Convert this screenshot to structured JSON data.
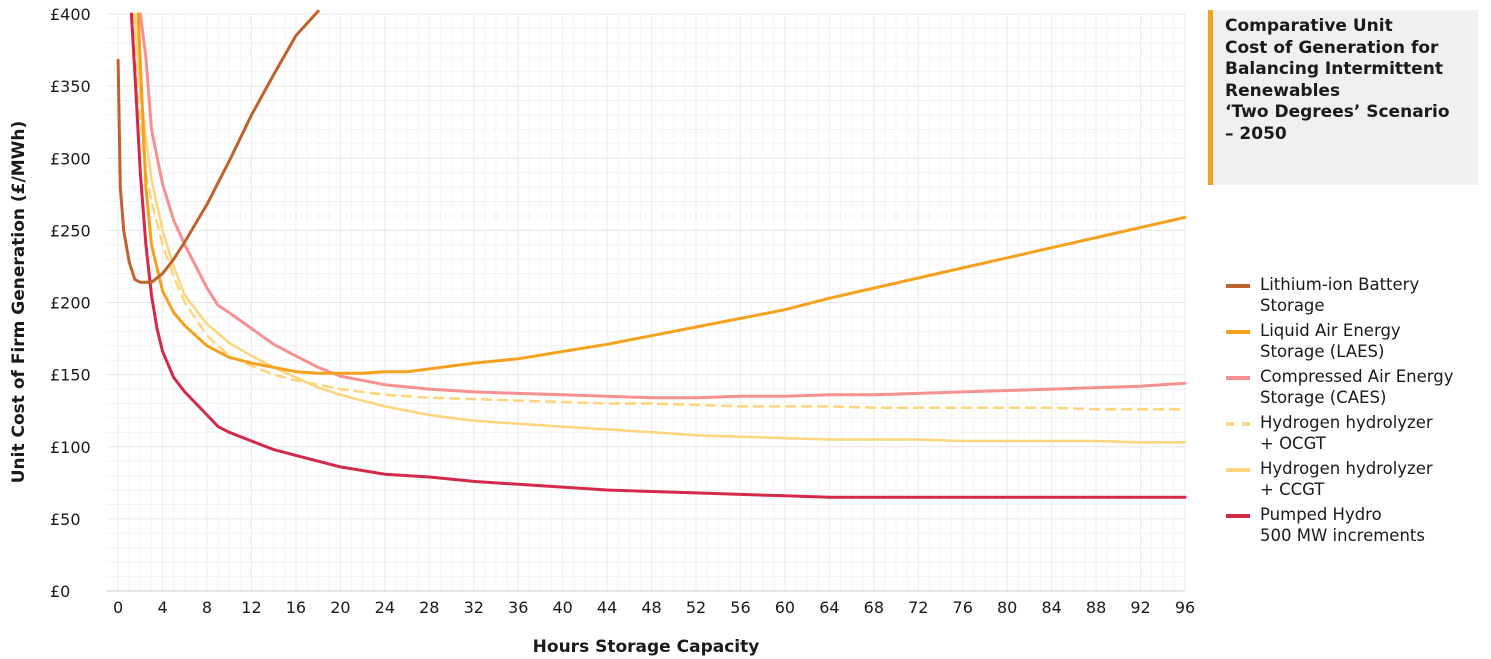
{
  "chart_data": {
    "type": "line",
    "title": "Comparative Unit\nCost of Generation for\nBalancing Intermittent\nRenewables\n‘Two Degrees’ Scenario\n– 2050",
    "xlabel": "Hours Storage Capacity",
    "ylabel": "Unit Cost of Firm Generation (£/MWh)",
    "xlim": [
      -1,
      96
    ],
    "ylim": [
      0,
      400
    ],
    "xticks": [
      "0",
      "4",
      "8",
      "12",
      "16",
      "20",
      "24",
      "28",
      "32",
      "36",
      "40",
      "44",
      "48",
      "52",
      "56",
      "60",
      "64",
      "68",
      "72",
      "76",
      "80",
      "84",
      "88",
      "92",
      "96"
    ],
    "yticks": [
      "£0",
      "£50",
      "£100",
      "£150",
      "£200",
      "£250",
      "£300",
      "£350",
      "£400"
    ],
    "grid": true,
    "legend_position": "right",
    "series": [
      {
        "name": "Lithium-ion Battery\nStorage",
        "color": "#c0622b",
        "dash": false,
        "x": [
          0,
          0.2,
          0.5,
          1,
          1.5,
          2,
          3,
          4,
          5,
          6,
          8,
          10,
          12,
          14,
          16,
          18
        ],
        "y": [
          368,
          280,
          250,
          228,
          216,
          214,
          214,
          220,
          230,
          242,
          268,
          298,
          330,
          358,
          385,
          410
        ]
      },
      {
        "name": "Liquid Air Energy\nStorage (LAES)",
        "color": "#f4a11f",
        "dash": false,
        "x": [
          1.8,
          2.5,
          3,
          4,
          5,
          6,
          8,
          10,
          12,
          14,
          16,
          18,
          20,
          22,
          24,
          26,
          28,
          32,
          36,
          40,
          44,
          48,
          52,
          56,
          60,
          64,
          68,
          72,
          76,
          80,
          84,
          88,
          92,
          96
        ],
        "y": [
          400,
          280,
          240,
          208,
          193,
          184,
          170,
          162,
          158,
          155,
          152,
          151,
          151,
          151,
          152,
          152,
          154,
          158,
          161,
          166,
          171,
          177,
          183,
          189,
          195,
          203,
          210,
          217,
          224,
          231,
          238,
          245,
          252,
          259
        ]
      },
      {
        "name": "Compressed Air Energy\nStorage (CAES)",
        "color": "#f79090",
        "dash": false,
        "x": [
          2,
          2.5,
          3,
          4,
          5,
          6,
          7,
          8,
          9,
          10,
          12,
          14,
          16,
          18,
          20,
          24,
          28,
          32,
          36,
          40,
          44,
          48,
          52,
          56,
          60,
          64,
          68,
          72,
          76,
          80,
          84,
          88,
          92,
          96
        ],
        "y": [
          400,
          370,
          320,
          282,
          257,
          240,
          225,
          210,
          198,
          193,
          182,
          171,
          163,
          155,
          149,
          143,
          140,
          138,
          137,
          136,
          135,
          134,
          134,
          135,
          135,
          136,
          136,
          137,
          138,
          139,
          140,
          141,
          142,
          144
        ]
      },
      {
        "name": "Hydrogen hydrolyzer\n+ OCGT",
        "color": "#fcd57d",
        "dash": true,
        "x": [
          1.3,
          1.8,
          2.5,
          3,
          4,
          5,
          6,
          8,
          10,
          12,
          14,
          16,
          18,
          20,
          24,
          28,
          32,
          36,
          40,
          44,
          48,
          52,
          56,
          60,
          64,
          68,
          72,
          76,
          80,
          84,
          88,
          92,
          96
        ],
        "y": [
          400,
          340,
          290,
          270,
          240,
          218,
          200,
          177,
          163,
          156,
          150,
          146,
          143,
          140,
          136,
          134,
          133,
          132,
          131,
          130,
          130,
          129,
          128,
          128,
          128,
          127,
          127,
          127,
          127,
          127,
          126,
          126,
          126
        ]
      },
      {
        "name": "Hydrogen hydrolyzer\n+ CCGT",
        "color": "#fcd57d",
        "dash": false,
        "x": [
          1.5,
          2,
          3,
          4,
          5,
          6,
          8,
          10,
          12,
          14,
          16,
          18,
          20,
          24,
          28,
          32,
          36,
          40,
          44,
          48,
          52,
          56,
          60,
          64,
          68,
          72,
          76,
          80,
          84,
          88,
          92,
          96
        ],
        "y": [
          400,
          345,
          285,
          250,
          225,
          205,
          185,
          172,
          163,
          155,
          148,
          141,
          136,
          128,
          122,
          118,
          116,
          114,
          112,
          110,
          108,
          107,
          106,
          105,
          105,
          105,
          104,
          104,
          104,
          104,
          103,
          103
        ]
      },
      {
        "name": "Pumped Hydro\n500 MW increments",
        "color": "#d3294b",
        "dash": false,
        "x": [
          1.2,
          1.5,
          2,
          2.5,
          3,
          3.5,
          4,
          5,
          6,
          8,
          9,
          10,
          12,
          14,
          16,
          18,
          20,
          24,
          28,
          32,
          36,
          40,
          44,
          48,
          52,
          56,
          60,
          64,
          68,
          72,
          76,
          80,
          84,
          88,
          92,
          96
        ],
        "y": [
          400,
          360,
          290,
          240,
          205,
          182,
          166,
          148,
          138,
          122,
          114,
          110,
          104,
          98,
          94,
          90,
          86,
          81,
          79,
          76,
          74,
          72,
          70,
          69,
          68,
          67,
          66,
          65,
          65,
          65,
          65,
          65,
          65,
          65,
          65,
          65
        ]
      }
    ]
  }
}
